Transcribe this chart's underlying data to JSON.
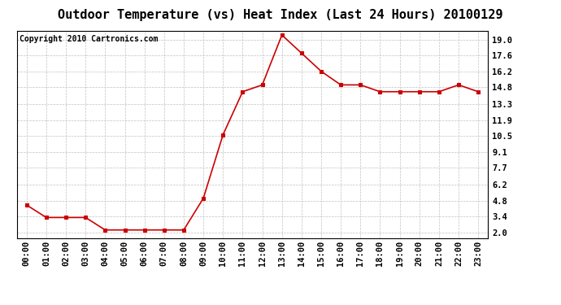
{
  "title": "Outdoor Temperature (vs) Heat Index (Last 24 Hours) 20100129",
  "copyright": "Copyright 2010 Cartronics.com",
  "x_labels": [
    "00:00",
    "01:00",
    "02:00",
    "03:00",
    "04:00",
    "05:00",
    "06:00",
    "07:00",
    "08:00",
    "09:00",
    "10:00",
    "11:00",
    "12:00",
    "13:00",
    "14:00",
    "15:00",
    "16:00",
    "17:00",
    "18:00",
    "19:00",
    "20:00",
    "21:00",
    "22:00",
    "23:00"
  ],
  "y_values": [
    4.4,
    3.3,
    3.3,
    3.3,
    2.2,
    2.2,
    2.2,
    2.2,
    2.2,
    5.0,
    10.6,
    14.4,
    15.0,
    19.4,
    17.8,
    16.2,
    15.0,
    15.0,
    14.4,
    14.4,
    14.4,
    14.4,
    15.0,
    14.4
  ],
  "line_color": "#cc0000",
  "marker_color": "#cc0000",
  "bg_color": "#ffffff",
  "plot_bg_color": "#ffffff",
  "grid_color": "#c0c0c0",
  "title_fontsize": 11,
  "copyright_fontsize": 7,
  "tick_fontsize": 7.5,
  "ytick_values": [
    2.0,
    3.4,
    4.8,
    6.2,
    7.7,
    9.1,
    10.5,
    11.9,
    13.3,
    14.8,
    16.2,
    17.6,
    19.0
  ],
  "ylim": [
    1.5,
    19.8
  ],
  "xlabel": "",
  "ylabel": ""
}
